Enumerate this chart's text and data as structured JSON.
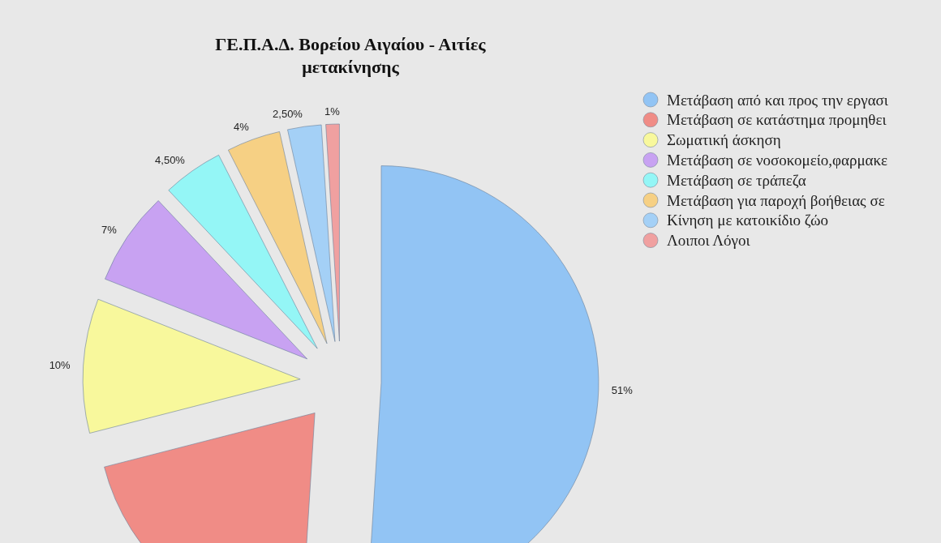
{
  "chart_data": {
    "type": "pie",
    "title": "ΓΕ.Π.Α.Δ. Βορείου Αιγαίου - Αιτίες μετακίνησης",
    "categories": [
      "Μετάβαση από και προς την εργασι",
      "Μετάβαση σε κατάστημα προμηθει",
      "Σωματική άσκηση",
      "Μετάβαση σε νοσοκομείο,φαρμακε",
      "Μετάβαση σε τράπεζα",
      "Μετάβαση για παροχή βοήθειας σε",
      "Κίνηση με κατοικίδιο ζώο",
      "Λοιποι Λόγοι"
    ],
    "values": [
      51,
      20,
      10,
      7,
      4.5,
      4,
      2.5,
      1
    ],
    "colors": [
      "#92c4f4",
      "#f08c86",
      "#f8f89c",
      "#c8a2f2",
      "#94f6f6",
      "#f6d084",
      "#a4d0f6",
      "#f0a0a0"
    ],
    "value_labels": [
      "51%",
      null,
      "10%",
      "7%",
      "4,50%",
      "4%",
      "2,50%",
      "1%"
    ],
    "legend": "right"
  }
}
